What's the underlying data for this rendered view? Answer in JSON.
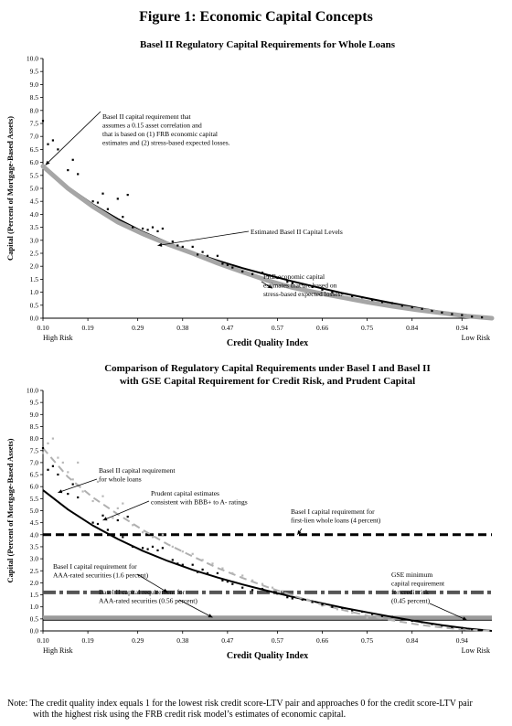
{
  "figure_title": "Figure 1: Economic Capital Concepts",
  "note": {
    "line1": "Note: The credit quality index equals 1 for the lowest risk credit score-LTV pair and approaches 0 for the credit score-LTV pair",
    "line2": "with the highest risk using the FRB credit risk model’s estimates of economic capital."
  },
  "chart_data": [
    {
      "type": "scatter",
      "title": "Basel II Regulatory Capital Requirements for Whole Loans",
      "xlabel": "Credit Quality Index",
      "ylabel": "Capital (Percent of Mortgage-Based Assets)",
      "xlim": [
        0.1,
        1.0
      ],
      "ylim": [
        0,
        10
      ],
      "x_ticks": [
        "0.10",
        "0.19",
        "0.29",
        "0.38",
        "0.47",
        "0.57",
        "0.66",
        "0.75",
        "0.84",
        "0.94"
      ],
      "y_ticks": [
        "0.0",
        "0.5",
        "1.0",
        "1.5",
        "2.0",
        "2.5",
        "3.0",
        "3.5",
        "4.0",
        "4.5",
        "5.0",
        "5.5",
        "6.0",
        "6.5",
        "7.0",
        "7.5",
        "8.0",
        "8.5",
        "9.0",
        "9.5",
        "10.0"
      ],
      "x_end_labels": {
        "left": "High Risk",
        "right": "Low Risk"
      },
      "legend": "none",
      "grid": false,
      "series": [
        {
          "kind": "line",
          "color": "#000000",
          "width": 2,
          "x": [
            0.1,
            0.15,
            0.2,
            0.25,
            0.3,
            0.35,
            0.4,
            0.45,
            0.5,
            0.55,
            0.6,
            0.65,
            0.7,
            0.75,
            0.8,
            0.85,
            0.9,
            0.95,
            1.0
          ],
          "y": [
            5.85,
            5.05,
            4.38,
            3.82,
            3.33,
            2.91,
            2.54,
            2.22,
            1.93,
            1.67,
            1.42,
            1.19,
            0.97,
            0.77,
            0.58,
            0.4,
            0.24,
            0.1,
            0.0
          ]
        },
        {
          "kind": "band",
          "color": "#a6a6a6",
          "x": [
            0.1,
            0.15,
            0.2,
            0.25,
            0.3,
            0.35,
            0.4,
            0.45,
            0.5,
            0.55,
            0.6,
            0.65,
            0.7,
            0.75,
            0.8,
            0.85,
            0.9,
            0.95,
            1.0
          ],
          "y": [
            5.85,
            5.0,
            4.3,
            3.7,
            3.25,
            2.85,
            2.5,
            2.12,
            1.78,
            1.45,
            1.18,
            0.98,
            0.8,
            0.62,
            0.46,
            0.32,
            0.2,
            0.08,
            0.0
          ]
        },
        {
          "kind": "points",
          "color": "#000000",
          "x": [
            0.1,
            0.11,
            0.12,
            0.13,
            0.15,
            0.16,
            0.17,
            0.2,
            0.21,
            0.22,
            0.23,
            0.25,
            0.26,
            0.27,
            0.28,
            0.3,
            0.31,
            0.32,
            0.33,
            0.34,
            0.36,
            0.37,
            0.38,
            0.4,
            0.41,
            0.42,
            0.43,
            0.45,
            0.46,
            0.47,
            0.48,
            0.5,
            0.52,
            0.54,
            0.55,
            0.57,
            0.59,
            0.6,
            0.62,
            0.64,
            0.66,
            0.68,
            0.7,
            0.72,
            0.74,
            0.76,
            0.78,
            0.8,
            0.82,
            0.84,
            0.86,
            0.88,
            0.9,
            0.92,
            0.94,
            0.96,
            0.98
          ],
          "y": [
            7.6,
            6.7,
            6.85,
            6.5,
            5.7,
            6.1,
            5.55,
            4.5,
            4.45,
            4.8,
            4.2,
            4.6,
            3.9,
            4.75,
            3.5,
            3.45,
            3.4,
            3.5,
            3.35,
            3.45,
            2.95,
            2.8,
            2.75,
            2.75,
            2.45,
            2.55,
            2.4,
            2.4,
            2.1,
            2.05,
            1.95,
            1.8,
            1.7,
            1.75,
            1.65,
            1.55,
            1.4,
            1.35,
            1.3,
            1.2,
            1.1,
            1.0,
            0.95,
            0.85,
            0.8,
            0.7,
            0.62,
            0.58,
            0.48,
            0.42,
            0.36,
            0.28,
            0.22,
            0.16,
            0.12,
            0.06,
            0.03
          ]
        }
      ],
      "annotations": [
        {
          "lines": [
            "Basel II capital requirement that",
            "assumes a 0.15 asset correlation and",
            "that is based on (1) FRB economic capital",
            "estimates and (2) stress-based expected losses."
          ]
        },
        {
          "lines": [
            "Estimated Basel II Capital Levels"
          ]
        },
        {
          "lines": [
            "FRB economic capital",
            "estimates that are based on",
            "stress-based expected losses."
          ]
        }
      ]
    },
    {
      "type": "scatter",
      "title": "Comparison of Regulatory Capital Requirements under Basel I and Basel II",
      "subtitle": "with GSE Capital Requirement for Credit Risk, and Prudent Capital",
      "xlabel": "Credit Quality Index",
      "ylabel": "Capital (Percent of Mortgage-Based Assets)",
      "xlim": [
        0.1,
        1.0
      ],
      "ylim": [
        0,
        10
      ],
      "x_ticks": [
        "0.10",
        "0.19",
        "0.29",
        "0.38",
        "0.47",
        "0.57",
        "0.66",
        "0.75",
        "0.84",
        "0.94"
      ],
      "y_ticks": [
        "0.0",
        "0.5",
        "1.0",
        "1.5",
        "2.0",
        "2.5",
        "3.0",
        "3.5",
        "4.0",
        "4.5",
        "5.0",
        "5.5",
        "6.0",
        "6.5",
        "7.0",
        "7.5",
        "8.0",
        "8.5",
        "9.0",
        "9.5",
        "10.0"
      ],
      "x_end_labels": {
        "left": "High Risk",
        "right": "Low Risk"
      },
      "legend": "none",
      "grid": false,
      "hlines": [
        {
          "y": 4.0,
          "style": "dash",
          "color": "#000000"
        },
        {
          "y": 1.6,
          "style": "dashdot",
          "color": "#555555"
        },
        {
          "y": 0.56,
          "style": "solid",
          "color": "#9a9a9a"
        },
        {
          "y": 0.45,
          "style": "solid",
          "color": "#000000"
        }
      ],
      "series": [
        {
          "kind": "line",
          "color": "#000000",
          "width": 2,
          "x": [
            0.1,
            0.15,
            0.2,
            0.25,
            0.3,
            0.35,
            0.4,
            0.45,
            0.5,
            0.55,
            0.6,
            0.65,
            0.7,
            0.75,
            0.8,
            0.85,
            0.9,
            0.95,
            1.0
          ],
          "y": [
            5.85,
            5.05,
            4.38,
            3.82,
            3.33,
            2.91,
            2.54,
            2.22,
            1.93,
            1.67,
            1.42,
            1.19,
            0.97,
            0.77,
            0.58,
            0.4,
            0.24,
            0.1,
            0.0
          ]
        },
        {
          "kind": "dashed",
          "color": "#b0b0b0",
          "width": 2,
          "x": [
            0.1,
            0.15,
            0.2,
            0.25,
            0.3,
            0.35,
            0.4,
            0.45,
            0.5,
            0.55,
            0.6,
            0.65,
            0.7,
            0.75,
            0.8,
            0.85,
            0.9,
            0.95,
            1.0
          ],
          "y": [
            7.6,
            6.4,
            5.55,
            4.85,
            4.2,
            3.6,
            3.1,
            2.62,
            2.2,
            1.82,
            1.48,
            1.15,
            0.88,
            0.64,
            0.44,
            0.27,
            0.14,
            0.05,
            0.0
          ]
        },
        {
          "kind": "points",
          "color": "#b8b8b8",
          "x": [
            0.1,
            0.11,
            0.12,
            0.13,
            0.14,
            0.15,
            0.16,
            0.17,
            0.18,
            0.2,
            0.21,
            0.22,
            0.24,
            0.25,
            0.26,
            0.28,
            0.3,
            0.32,
            0.34,
            0.36,
            0.38,
            0.4,
            0.42,
            0.44,
            0.46,
            0.48,
            0.5,
            0.52,
            0.54,
            0.56,
            0.58,
            0.6,
            0.63,
            0.66,
            0.69,
            0.72,
            0.75
          ],
          "y": [
            7.4,
            7.8,
            8.0,
            7.2,
            7.0,
            6.6,
            6.3,
            7.0,
            5.8,
            5.4,
            6.2,
            5.6,
            4.7,
            5.1,
            5.3,
            4.4,
            4.1,
            3.9,
            4.0,
            3.5,
            3.3,
            3.2,
            2.95,
            2.8,
            2.6,
            2.4,
            2.3,
            2.1,
            1.95,
            1.8,
            1.65,
            1.5,
            1.3,
            1.05,
            0.9,
            0.75,
            0.55
          ]
        },
        {
          "kind": "points",
          "color": "#000000",
          "x": [
            0.1,
            0.11,
            0.12,
            0.13,
            0.15,
            0.16,
            0.17,
            0.2,
            0.21,
            0.22,
            0.23,
            0.25,
            0.26,
            0.27,
            0.28,
            0.3,
            0.31,
            0.32,
            0.33,
            0.34,
            0.36,
            0.37,
            0.38,
            0.4,
            0.41,
            0.42,
            0.43,
            0.45,
            0.46,
            0.47,
            0.48,
            0.5,
            0.52,
            0.54,
            0.55,
            0.57,
            0.59,
            0.6,
            0.62,
            0.64,
            0.66,
            0.68,
            0.7,
            0.72,
            0.74,
            0.76,
            0.78,
            0.8,
            0.82,
            0.84,
            0.86,
            0.88,
            0.9,
            0.92,
            0.94,
            0.96,
            0.98
          ],
          "y": [
            7.6,
            6.7,
            6.85,
            6.5,
            5.7,
            6.1,
            5.55,
            4.5,
            4.45,
            4.8,
            4.2,
            4.6,
            3.9,
            4.75,
            3.5,
            3.45,
            3.4,
            3.5,
            3.35,
            3.45,
            2.95,
            2.8,
            2.75,
            2.75,
            2.45,
            2.55,
            2.4,
            2.4,
            2.1,
            2.05,
            1.95,
            1.8,
            1.7,
            1.75,
            1.65,
            1.55,
            1.4,
            1.35,
            1.3,
            1.2,
            1.1,
            1.0,
            0.95,
            0.85,
            0.8,
            0.7,
            0.62,
            0.58,
            0.48,
            0.42,
            0.36,
            0.28,
            0.22,
            0.16,
            0.12,
            0.06,
            0.03
          ]
        }
      ],
      "annotations": [
        {
          "lines": [
            "Basel II capital requirement",
            "for whole loans"
          ]
        },
        {
          "lines": [
            "Prudent capital estimates",
            "consistent with BBB+ to A- ratings"
          ]
        },
        {
          "lines": [
            "Basel I capital requirement for",
            "first-lien whole loans (4 percent)"
          ]
        },
        {
          "lines": [
            "Basel I capital requirement for",
            "AAA-rated securities (1.6 percent)"
          ]
        },
        {
          "lines": [
            "Basel II capital requirement for",
            "AAA-rated securities (0.56 percent)"
          ]
        },
        {
          "lines": [
            "GSE minimum",
            "capital requirement",
            "for credit risk",
            "(0.45 percent)"
          ]
        }
      ]
    }
  ]
}
